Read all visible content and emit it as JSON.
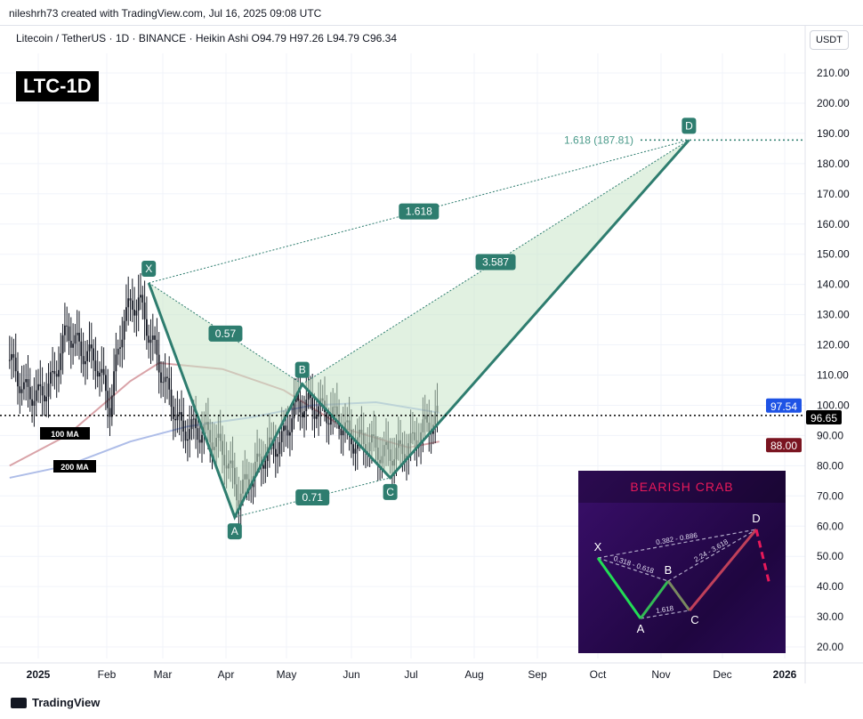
{
  "header": {
    "credit": "nileshrh73 created with TradingView.com, Jul 16, 2025 09:08 UTC",
    "legend": "Litecoin / TetherUS · 1D · BINANCE · Heikin Ashi  O94.79  H97.26  L94.79  C96.34",
    "ticker": "LTC-1D",
    "unit": "USDT"
  },
  "footer": {
    "brand": "TradingView"
  },
  "chart_data": {
    "type": "candlestick",
    "title": "Litecoin / TetherUS · 1D · BINANCE · Heikin Ashi",
    "ylim": [
      15,
      215
    ],
    "y_ticks": [
      20,
      30,
      40,
      50,
      60,
      70,
      80,
      90,
      100,
      110,
      120,
      130,
      140,
      150,
      160,
      170,
      180,
      190,
      200,
      210
    ],
    "x_ticks": [
      "2025",
      "Feb",
      "Mar",
      "Apr",
      "May",
      "Jun",
      "Jul",
      "Aug",
      "Sep",
      "Oct",
      "Nov",
      "Dec",
      "2026"
    ],
    "grid": true,
    "ohlc_last": {
      "open": 94.79,
      "high": 97.26,
      "low": 94.79,
      "close": 96.34
    },
    "price_path": [
      [
        "2024-12-18",
        115
      ],
      [
        "2024-12-25",
        105
      ],
      [
        "2025-01-01",
        103
      ],
      [
        "2025-01-08",
        108
      ],
      [
        "2025-01-15",
        125
      ],
      [
        "2025-01-22",
        118
      ],
      [
        "2025-01-29",
        115
      ],
      [
        "2025-02-05",
        100
      ],
      [
        "2025-02-12",
        130
      ],
      [
        "2025-02-19",
        135
      ],
      [
        "2025-02-26",
        120
      ],
      [
        "2025-03-05",
        105
      ],
      [
        "2025-03-12",
        92
      ],
      [
        "2025-03-19",
        92
      ],
      [
        "2025-03-26",
        90
      ],
      [
        "2025-04-02",
        84
      ],
      [
        "2025-04-09",
        70
      ],
      [
        "2025-04-16",
        78
      ],
      [
        "2025-04-23",
        85
      ],
      [
        "2025-04-30",
        88
      ],
      [
        "2025-05-07",
        100
      ],
      [
        "2025-05-14",
        100
      ],
      [
        "2025-05-21",
        98
      ],
      [
        "2025-05-28",
        95
      ],
      [
        "2025-06-04",
        88
      ],
      [
        "2025-06-11",
        88
      ],
      [
        "2025-06-18",
        84
      ],
      [
        "2025-06-25",
        84
      ],
      [
        "2025-07-02",
        87
      ],
      [
        "2025-07-09",
        93
      ],
      [
        "2025-07-16",
        96.34
      ]
    ],
    "moving_averages": [
      {
        "name": "100 MA",
        "color": "#d9a3a8",
        "points": [
          [
            "2024-12-18",
            80
          ],
          [
            "2025-01-15",
            90
          ],
          [
            "2025-02-15",
            108
          ],
          [
            "2025-03-01",
            114
          ],
          [
            "2025-04-01",
            112
          ],
          [
            "2025-05-01",
            105
          ],
          [
            "2025-06-01",
            92
          ],
          [
            "2025-07-01",
            86
          ],
          [
            "2025-07-16",
            88
          ]
        ],
        "last": 88.0,
        "badge_color": "#7a1420"
      },
      {
        "name": "200 MA",
        "color": "#aebde8",
        "points": [
          [
            "2024-12-18",
            76
          ],
          [
            "2025-01-15",
            80
          ],
          [
            "2025-02-15",
            88
          ],
          [
            "2025-03-15",
            93
          ],
          [
            "2025-04-15",
            96
          ],
          [
            "2025-05-15",
            100
          ],
          [
            "2025-06-15",
            101
          ],
          [
            "2025-07-16",
            97.54
          ]
        ],
        "last": 97.54,
        "badge_color": "#1e53e5"
      }
    ],
    "current_price": 96.65,
    "pattern": {
      "points": [
        {
          "label": "X",
          "date": "2025-02-24",
          "price": 140.5
        },
        {
          "label": "A",
          "date": "2025-04-07",
          "price": 63
        },
        {
          "label": "B",
          "date": "2025-05-10",
          "price": 107
        },
        {
          "label": "C",
          "date": "2025-06-22",
          "price": 76
        },
        {
          "label": "D",
          "date": "2025-11-15",
          "price": 187.81
        }
      ],
      "ratios": {
        "XB": "0.57",
        "AC": "0.71",
        "BD": "3.587",
        "XD": "1.618"
      },
      "target_label": "1.618 (187.81)",
      "color": "#2e7d6f",
      "fill": "#c8e6c9"
    }
  },
  "inset": {
    "title": "BEARISH CRAB",
    "labels": [
      "X",
      "A",
      "B",
      "C",
      "D"
    ],
    "ratios": [
      "0.382 - 0.886",
      "0.318 - 0.618",
      "2.24 - 3.618",
      "1.618"
    ]
  }
}
